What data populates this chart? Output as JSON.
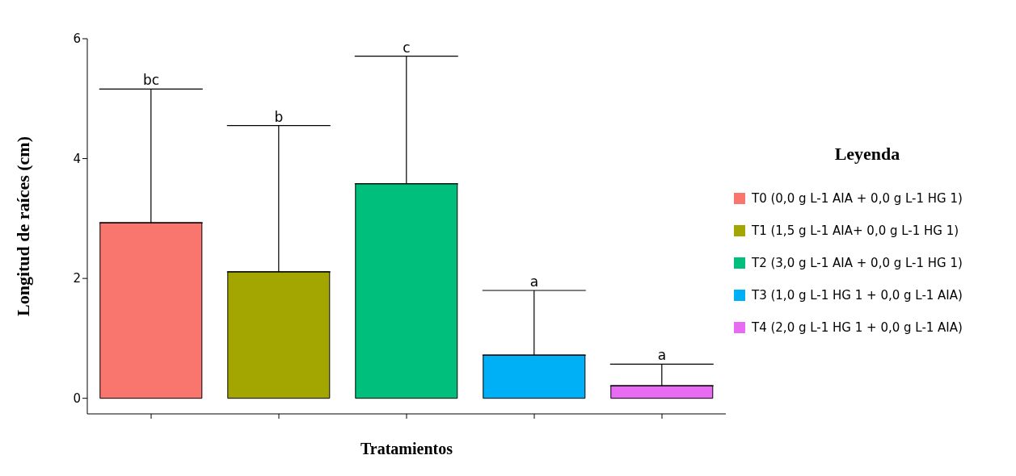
{
  "chart_data": {
    "type": "bar",
    "xlabel": "Tratamientos",
    "ylabel": "Longitud de raíces (cm)",
    "legend_title": "Leyenda",
    "legend": "right",
    "stacked": true,
    "grid": false,
    "tick_labels": "y",
    "categories": [
      null,
      null,
      null,
      null,
      null
    ],
    "ylim": [
      -0.26,
      6
    ],
    "yticks": [
      0,
      2,
      4,
      6
    ],
    "series": [
      {
        "name": "T0 (0,0 g L-1 AIA + 0,0 g L-1 HG 1)",
        "color": "#f8766d",
        "values": [
          2.93,
          null,
          null,
          null,
          null
        ],
        "errors": [
          [
            2.93,
            5.16
          ],
          null,
          null,
          null,
          null
        ]
      },
      {
        "name": "T1 (1,5 g L-1 AIA+ 0,0 g L-1 HG 1)",
        "color": "#a3a500",
        "values": [
          null,
          2.11,
          null,
          null,
          null
        ],
        "errors": [
          null,
          [
            2.11,
            4.55
          ],
          null,
          null,
          null
        ]
      },
      {
        "name": "T2 (3,0 g L-1 AIA + 0,0 g L-1 HG 1)",
        "color": "#00bf7d",
        "values": [
          null,
          null,
          3.58,
          null,
          null
        ],
        "errors": [
          null,
          null,
          [
            3.58,
            5.71
          ],
          null,
          null
        ]
      },
      {
        "name": "T3 (1,0 g L-1 HG 1 + 0,0 g L-1 AIA)",
        "color": "#00b0f6",
        "values": [
          null,
          null,
          null,
          0.72,
          null
        ],
        "errors": [
          null,
          null,
          null,
          [
            0.72,
            1.8
          ],
          null
        ]
      },
      {
        "name": "T4 (2,0 g L-1 HG 1 + 0,0 g L-1 AIA)",
        "color": "#e76bf3",
        "values": [
          null,
          null,
          null,
          null,
          0.21
        ],
        "errors": [
          null,
          null,
          null,
          null,
          [
            0.21,
            0.57
          ]
        ]
      }
    ],
    "annotations": [
      {
        "text": "bc",
        "y": 5.16
      },
      {
        "text": "b",
        "y": 4.55
      },
      {
        "text": "c",
        "y": 5.71
      },
      {
        "text": "a",
        "y": 1.8
      },
      {
        "text": "a",
        "y": 0.57
      }
    ]
  }
}
